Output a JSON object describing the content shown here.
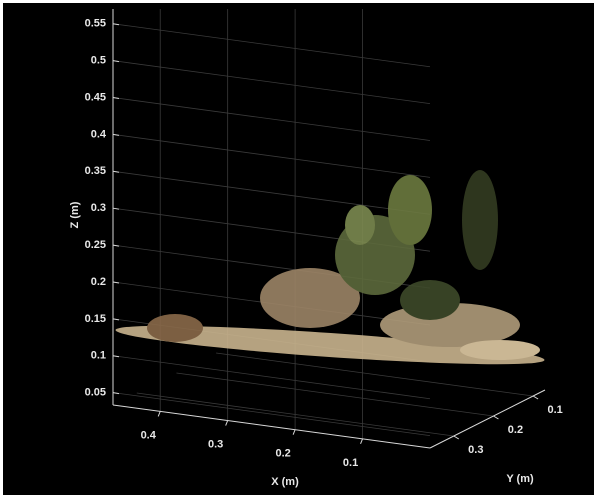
{
  "chart_data": {
    "type": "scatter3d",
    "xlabel": "X (m)",
    "ylabel": "Y (m)",
    "zlabel": "Z (m)",
    "xlim": [
      0,
      0.47
    ],
    "xticks": [
      0.1,
      0.2,
      0.3,
      0.4
    ],
    "ylim": [
      0.07,
      0.36
    ],
    "yticks": [
      0.1,
      0.2,
      0.3
    ],
    "zlim": [
      0.04,
      0.57
    ],
    "zticks": [
      0.05,
      0.1,
      0.15,
      0.2,
      0.25,
      0.3,
      0.35,
      0.4,
      0.45,
      0.5,
      0.55
    ],
    "grid": true
  }
}
